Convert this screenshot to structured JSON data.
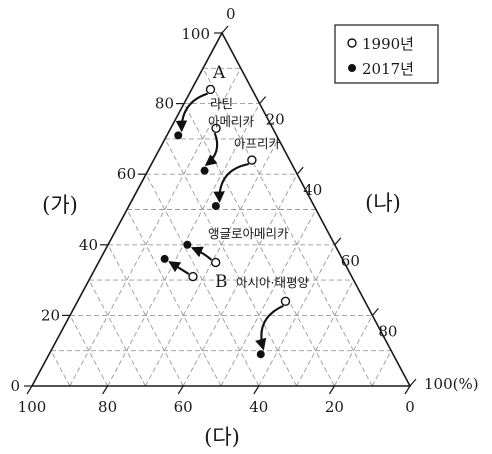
{
  "chart_data": {
    "type": "ternary",
    "axes": {
      "ga": {
        "name": "(가)",
        "ticks": [
          "0",
          "20",
          "40",
          "60",
          "80",
          "100"
        ]
      },
      "na": {
        "name": "(나)",
        "ticks": [
          "0",
          "20",
          "40",
          "60",
          "80",
          "100(%)"
        ]
      },
      "da": {
        "name": "(다)",
        "ticks": [
          "100",
          "80",
          "60",
          "40",
          "20",
          "0"
        ]
      }
    },
    "grid": true,
    "legend": {
      "placement": "top-right",
      "items": [
        {
          "label": "1990년",
          "marker": "open-circle"
        },
        {
          "label": "2017년",
          "marker": "filled-circle"
        }
      ]
    },
    "series": [
      {
        "name": "A",
        "label": "A",
        "from": {
          "ga": 84,
          "na": 5,
          "da": 11
        },
        "to": {
          "ga": 71,
          "na": 3,
          "da": 26
        }
      },
      {
        "name": "라틴 아메리카",
        "label_lines": [
          "라틴",
          "아메리카"
        ],
        "from": {
          "ga": 73,
          "na": 12,
          "da": 15
        },
        "to": {
          "ga": 61,
          "na": 15,
          "da": 24
        }
      },
      {
        "name": "아프리카",
        "label_lines": [
          "아프리카"
        ],
        "from": {
          "ga": 64,
          "na": 26,
          "da": 10
        },
        "to": {
          "ga": 51,
          "na": 23,
          "da": 26
        }
      },
      {
        "name": "앵글로아메리카",
        "label_lines": [
          "앵글로아메리카"
        ],
        "from": {
          "ga": 35,
          "na": 31,
          "da": 34
        },
        "to": {
          "ga": 40,
          "na": 21,
          "da": 39
        }
      },
      {
        "name": "B",
        "label": "B",
        "from": {
          "ga": 31,
          "na": 27,
          "da": 42
        },
        "to": {
          "ga": 36,
          "na": 17,
          "da": 47
        }
      },
      {
        "name": "아시아·태평양",
        "label_lines": [
          "아시아·태평양"
        ],
        "from": {
          "ga": 24,
          "na": 55,
          "da": 21
        },
        "to": {
          "ga": 9,
          "na": 56,
          "da": 35
        }
      }
    ]
  }
}
